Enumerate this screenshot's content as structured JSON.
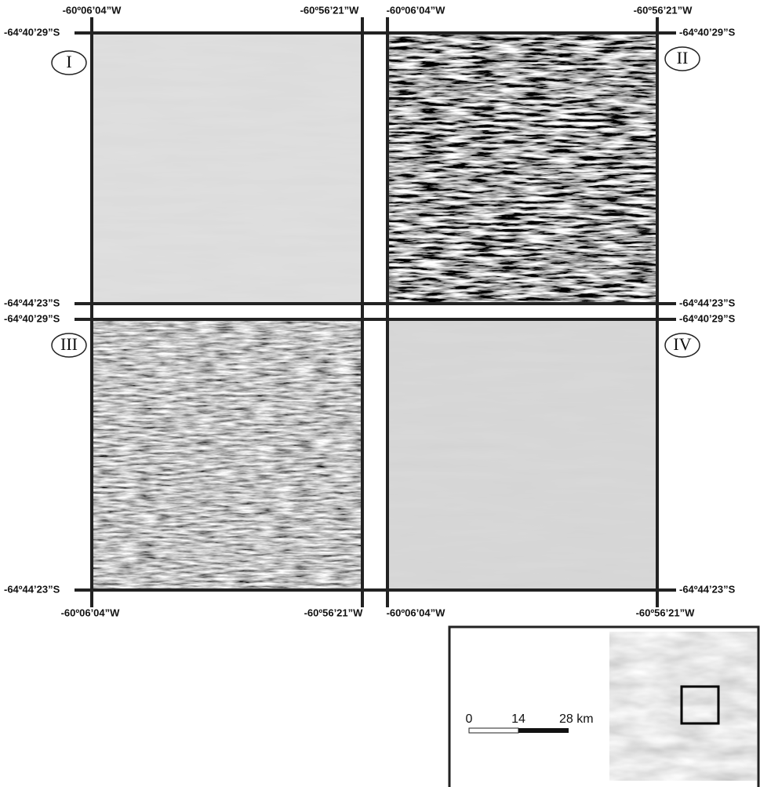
{
  "coordinates": {
    "lon_west": "-60º06’04”W",
    "lon_east": "-60º56’21”W",
    "lat_north": "-64º40’29”S",
    "lat_south": "-64º44’23”S"
  },
  "panels": [
    {
      "label": "I"
    },
    {
      "label": "II"
    },
    {
      "label": "III"
    },
    {
      "label": "IV"
    }
  ],
  "scale_bar": {
    "labels": [
      "0",
      "14",
      "28 km"
    ]
  }
}
